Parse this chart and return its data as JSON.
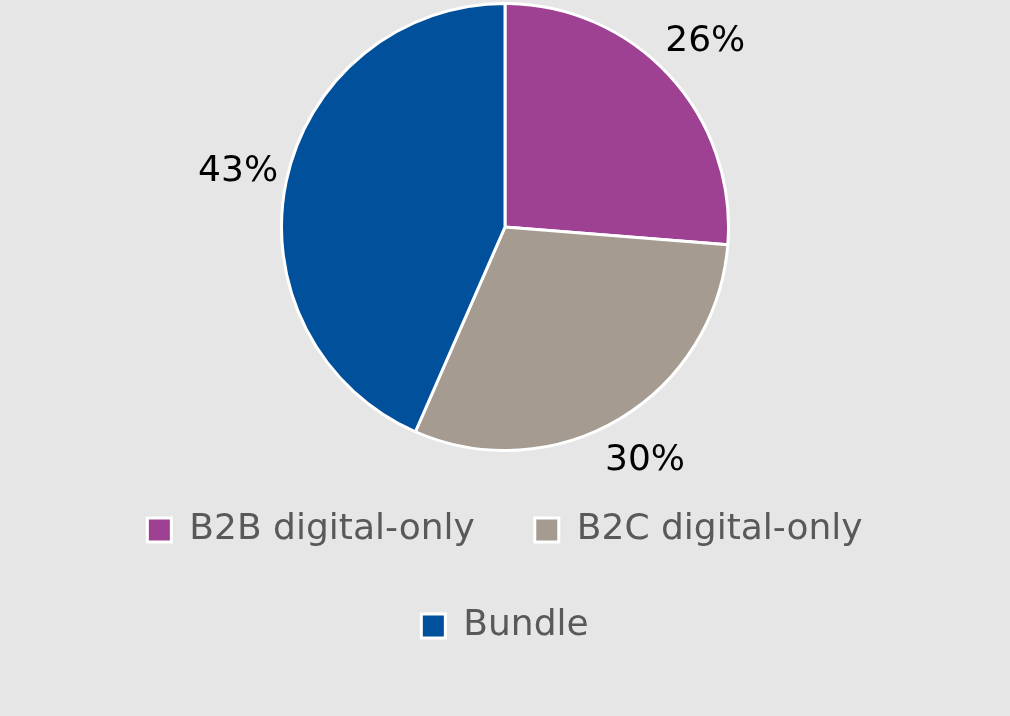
{
  "chart_data": {
    "type": "pie",
    "categories": [
      "B2B digital-only",
      "B2C digital-only",
      "Bundle"
    ],
    "values": [
      26,
      30,
      43
    ],
    "colors": [
      "#9e4192",
      "#a69b90",
      "#00509b"
    ],
    "value_labels": [
      "26%",
      "30%",
      "43%"
    ],
    "legend": "bottom"
  }
}
